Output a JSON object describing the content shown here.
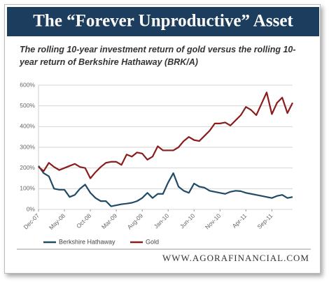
{
  "chart_data": {
    "type": "line",
    "title": "The “Forever Unproductive” Asset",
    "subtitle": "The rolling 10-year investment return of gold versus the rolling 10-year return of Berkshire Hathaway (BRK/A)",
    "source": "WWW.AGORAFINANCIAL.COM",
    "categories": [
      "Dec-07",
      null,
      null,
      null,
      null,
      "May-08",
      null,
      null,
      null,
      null,
      "Oct-08",
      null,
      null,
      null,
      null,
      "Mar-09",
      null,
      null,
      null,
      null,
      "Aug-09",
      null,
      null,
      null,
      null,
      "Jan-10",
      null,
      null,
      null,
      null,
      "Jun-10",
      null,
      null,
      null,
      null,
      "Nov-10",
      null,
      null,
      null,
      null,
      "Apr-11",
      null,
      null,
      null,
      null,
      "Sep-11",
      null,
      null,
      null,
      null
    ],
    "series": [
      {
        "name": "Berkshire Hathaway",
        "color": "#1f4b66",
        "values": [
          210,
          175,
          160,
          100,
          95,
          95,
          60,
          70,
          100,
          120,
          80,
          55,
          40,
          40,
          15,
          20,
          25,
          28,
          32,
          40,
          55,
          80,
          55,
          75,
          75,
          130,
          175,
          110,
          90,
          80,
          125,
          110,
          105,
          90,
          85,
          80,
          75,
          85,
          90,
          88,
          80,
          75,
          70,
          65,
          60,
          55,
          65,
          70,
          55,
          60
        ]
      },
      {
        "name": "Gold",
        "color": "#8b1c1c",
        "values": [
          205,
          185,
          225,
          205,
          190,
          200,
          210,
          220,
          205,
          200,
          150,
          180,
          205,
          225,
          230,
          230,
          215,
          265,
          255,
          275,
          270,
          240,
          255,
          305,
          285,
          285,
          285,
          300,
          330,
          350,
          335,
          330,
          355,
          380,
          415,
          415,
          420,
          405,
          430,
          455,
          495,
          480,
          455,
          510,
          565,
          460,
          515,
          540,
          465,
          515
        ]
      }
    ],
    "ylim": [
      0,
      600
    ],
    "yticks": [
      {
        "value": 0,
        "label": "0%"
      },
      {
        "value": 100,
        "label": "100%"
      },
      {
        "value": 200,
        "label": "200%"
      },
      {
        "value": 300,
        "label": "300%"
      },
      {
        "value": 400,
        "label": "400%"
      },
      {
        "value": 500,
        "label": "500%"
      },
      {
        "value": 600,
        "label": "600%"
      }
    ],
    "grid": true
  }
}
